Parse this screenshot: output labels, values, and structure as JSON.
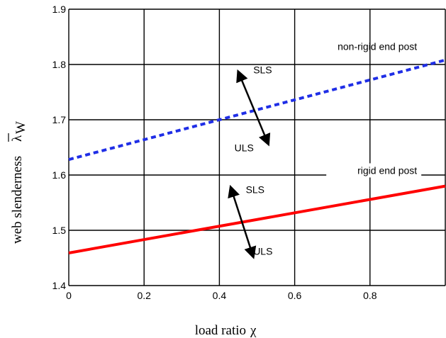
{
  "chart_data": {
    "type": "line",
    "xlabel": "load ratio",
    "xlabel_symbol": "χ",
    "ylabel": "web slenderness",
    "ylabel_symbol": "λ",
    "ylabel_subscript": "W",
    "xlim": [
      0,
      1
    ],
    "ylim": [
      1.4,
      1.9
    ],
    "x_ticks": [
      0,
      0.2,
      0.4,
      0.6,
      0.8
    ],
    "x_tick_labels": [
      "0",
      "0.2",
      "0.4",
      "0.6",
      "0.8"
    ],
    "y_ticks": [
      1.4,
      1.5,
      1.6,
      1.7,
      1.8,
      1.9
    ],
    "y_tick_labels": [
      "1.4",
      "1.5",
      "1.6",
      "1.7",
      "1.8",
      "1.9"
    ],
    "grid": true,
    "series": [
      {
        "name": "non-rigid end post",
        "x": [
          0,
          1
        ],
        "y": [
          1.628,
          1.808
        ],
        "color": "#1f2ee6",
        "style": "dashed"
      },
      {
        "name": "rigid end post",
        "x": [
          0,
          1
        ],
        "y": [
          1.459,
          1.58
        ],
        "color": "#ff0000",
        "style": "solid"
      }
    ],
    "annotations": [
      {
        "text": "SLS",
        "x": 0.49,
        "y": 1.784
      },
      {
        "text": "ULS",
        "x": 0.44,
        "y": 1.643
      },
      {
        "text": "SLS",
        "x": 0.47,
        "y": 1.567
      },
      {
        "text": "ULS",
        "x": 0.49,
        "y": 1.456
      }
    ],
    "arrows": [
      {
        "from": [
          0.45,
          1.787
        ],
        "to": [
          0.53,
          1.656
        ]
      },
      {
        "from": [
          0.43,
          1.578
        ],
        "to": [
          0.49,
          1.452
        ]
      }
    ]
  }
}
